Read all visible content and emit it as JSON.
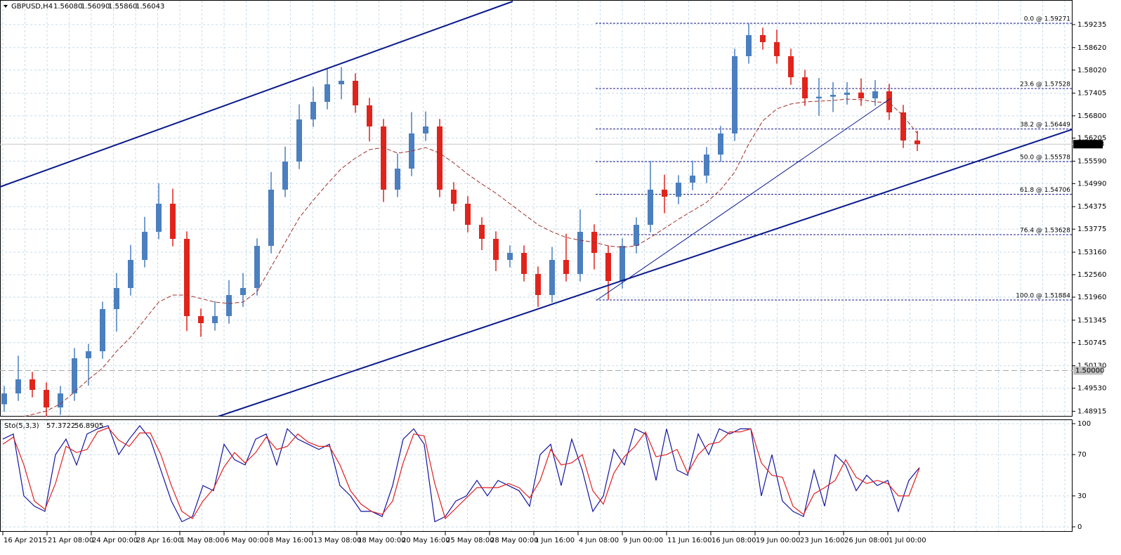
{
  "chart_data": [
    {
      "type": "candlestick",
      "title": "GBPUSD,H4",
      "info": [
        "1.56080",
        "1.56090",
        "1.55860",
        "1.56043"
      ],
      "bull_color": "#4b7fbf",
      "bear_color": "#e0241c",
      "grid": true,
      "ylim": [
        1.48772,
        1.59891
      ],
      "yticks": [
        {
          "value": 1.59235,
          "label": "1.59235"
        },
        {
          "value": 1.5862,
          "label": "1.58620"
        },
        {
          "value": 1.5802,
          "label": "1.58020"
        },
        {
          "value": 1.57405,
          "label": "1.57405"
        },
        {
          "value": 1.568,
          "label": "1.56800"
        },
        {
          "value": 1.56205,
          "label": "1.56205"
        },
        {
          "value": 1.5559,
          "label": "1.55590"
        },
        {
          "value": 1.5499,
          "label": "1.54990"
        },
        {
          "value": 1.54375,
          "label": "1.54375"
        },
        {
          "value": 1.53775,
          "label": "1.53775"
        },
        {
          "value": 1.5316,
          "label": "1.53160"
        },
        {
          "value": 1.5256,
          "label": "1.52560"
        },
        {
          "value": 1.5196,
          "label": "1.51960"
        },
        {
          "value": 1.51345,
          "label": "1.51345"
        },
        {
          "value": 1.50745,
          "label": "1.50745"
        },
        {
          "value": 1.5013,
          "label": "1.50130"
        },
        {
          "value": 1.4953,
          "label": "1.49530"
        },
        {
          "value": 1.48915,
          "label": "1.48915"
        }
      ],
      "x_labels": [
        "16 Apr 2015",
        "21 Apr 08:00",
        "24 Apr 00:00",
        "28 Apr 16:00",
        "1 May 08:00",
        "6 May 00:00",
        "8 May 16:00",
        "13 May 08:00",
        "18 May 00:00",
        "20 May 16:00",
        "25 May 08:00",
        "28 May 00:00",
        "1 Jun 16:00",
        "4 Jun 08:00",
        "9 Jun 00:00",
        "11 Jun 16:00",
        "16 Jun 08:00",
        "19 Jun 00:00",
        "23 Jun 16:00",
        "26 Jun 08:00",
        "1 Jul 00:00"
      ],
      "open": [
        1.491,
        1.49391,
        1.49766,
        1.49485,
        1.49016,
        1.49391,
        1.50329,
        1.50516,
        1.51641,
        1.52204,
        1.52954,
        1.53704,
        1.54454,
        1.53516,
        1.51454,
        1.51266,
        1.51454,
        1.52016,
        1.52204,
        1.53329,
        1.54829,
        1.55579,
        1.56704,
        1.57172,
        1.57641,
        1.57735,
        1.57079,
        1.56516,
        1.54829,
        1.55391,
        1.56329,
        1.56516,
        1.54829,
        1.54454,
        1.53891,
        1.53516,
        1.52954,
        1.53141,
        1.52579,
        1.52016,
        1.52954,
        1.52579,
        1.53704,
        1.53141,
        1.52391,
        1.53329,
        1.53891,
        1.54829,
        1.54641,
        1.55016,
        1.55204,
        1.55766,
        1.56329,
        1.58391,
        1.58954,
        1.58766,
        1.58391,
        1.57829,
        1.57266,
        1.5731,
        1.5736,
        1.5742,
        1.57266,
        1.57454,
        1.56891,
        1.56141
      ],
      "high": [
        1.49591,
        1.504,
        1.49966,
        1.49685,
        1.49591,
        1.506,
        1.50716,
        1.51841,
        1.52604,
        1.53354,
        1.54104,
        1.55,
        1.54854,
        1.53716,
        1.51654,
        1.51854,
        1.52416,
        1.52604,
        1.53529,
        1.553,
        1.55979,
        1.57104,
        1.57572,
        1.58041,
        1.581,
        1.57935,
        1.57279,
        1.56716,
        1.55791,
        1.569,
        1.56916,
        1.56716,
        1.55029,
        1.54654,
        1.54091,
        1.53716,
        1.53341,
        1.53341,
        1.52779,
        1.533,
        1.53654,
        1.543,
        1.53904,
        1.53341,
        1.53529,
        1.54091,
        1.556,
        1.55229,
        1.55216,
        1.55604,
        1.55966,
        1.56529,
        1.58591,
        1.59271,
        1.59154,
        1.591,
        1.58591,
        1.58029,
        1.5781,
        1.577,
        1.577,
        1.578,
        1.57754,
        1.57654,
        1.57091,
        1.564
      ],
      "low": [
        1.489,
        1.49191,
        1.49285,
        1.487,
        1.48816,
        1.49191,
        1.496,
        1.50316,
        1.51041,
        1.52004,
        1.52754,
        1.53504,
        1.53316,
        1.51054,
        1.509,
        1.51066,
        1.51254,
        1.517,
        1.52004,
        1.53129,
        1.54629,
        1.55379,
        1.56504,
        1.56972,
        1.57241,
        1.56879,
        1.56116,
        1.545,
        1.54629,
        1.55191,
        1.56129,
        1.54629,
        1.54254,
        1.53691,
        1.53216,
        1.52654,
        1.52754,
        1.52379,
        1.517,
        1.51816,
        1.52379,
        1.52379,
        1.527,
        1.51884,
        1.52191,
        1.53129,
        1.53691,
        1.542,
        1.54441,
        1.54816,
        1.55004,
        1.55566,
        1.56129,
        1.58191,
        1.58566,
        1.58191,
        1.57629,
        1.57066,
        1.568,
        1.569,
        1.571,
        1.57066,
        1.57066,
        1.56691,
        1.55941,
        1.5586
      ],
      "close": [
        1.49391,
        1.49766,
        1.49485,
        1.49016,
        1.49391,
        1.50329,
        1.50516,
        1.51641,
        1.52204,
        1.52954,
        1.53704,
        1.54454,
        1.53516,
        1.51454,
        1.51266,
        1.51454,
        1.52016,
        1.52204,
        1.53329,
        1.54829,
        1.55579,
        1.56704,
        1.57172,
        1.57641,
        1.57735,
        1.57079,
        1.56516,
        1.54829,
        1.55391,
        1.56329,
        1.56516,
        1.54829,
        1.54454,
        1.53891,
        1.53516,
        1.52954,
        1.53141,
        1.52579,
        1.52016,
        1.52954,
        1.52579,
        1.53704,
        1.53141,
        1.52391,
        1.53329,
        1.53891,
        1.54829,
        1.54641,
        1.55016,
        1.55204,
        1.55766,
        1.56329,
        1.58391,
        1.58954,
        1.58766,
        1.58391,
        1.57829,
        1.57266,
        1.5731,
        1.5736,
        1.5742,
        1.57266,
        1.57454,
        1.56891,
        1.56141,
        1.56043
      ],
      "ma": {
        "color": "#a0302a",
        "values": [
          null,
          1.48735,
          1.48829,
          1.48922,
          1.4911,
          1.49429,
          1.49766,
          1.50066,
          1.50516,
          1.50891,
          1.5136,
          1.51829,
          1.52016,
          1.52016,
          1.51922,
          1.51829,
          1.51791,
          1.51829,
          1.5211,
          1.52766,
          1.53422,
          1.54079,
          1.54547,
          1.54979,
          1.55391,
          1.55672,
          1.55897,
          1.55954,
          1.55804,
          1.5586,
          1.55954,
          1.55804,
          1.55541,
          1.55241,
          1.54979,
          1.54735,
          1.54454,
          1.54172,
          1.53891,
          1.53704,
          1.53554,
          1.53479,
          1.53422,
          1.53329,
          1.53291,
          1.53329,
          1.53554,
          1.53797,
          1.54041,
          1.54266,
          1.54491,
          1.54829,
          1.55297,
          1.56047,
          1.56666,
          1.56985,
          1.57116,
          1.57172,
          1.57191,
          1.5721,
          1.57247,
          1.57229,
          1.57172,
          1.57154,
          1.56797,
          1.56329
        ]
      },
      "fib_color": "#1a1a8c",
      "fib_levels": [
        {
          "value": 1.59271,
          "label": "0.0 @ 1.59271"
        },
        {
          "value": 1.57528,
          "label": "23.6 @ 1.57528"
        },
        {
          "value": 1.56449,
          "label": "38.2 @ 1.56449"
        },
        {
          "value": 1.55578,
          "label": "50.0 @ 1.55578"
        },
        {
          "value": 1.54706,
          "label": "61.8 @ 1.54706"
        },
        {
          "value": 1.53628,
          "label": "76.4 @ 1.53628"
        },
        {
          "value": 1.51884,
          "label": "100.0 @ 1.51884"
        }
      ],
      "hline": {
        "value": 1.5,
        "label": "1.50000"
      },
      "last_price": 1.56043
    },
    {
      "type": "line",
      "title": "Sto(5,3,3)",
      "readout": [
        "57.3722",
        "56.8905"
      ],
      "ylim": [
        -4.8,
        104.1
      ],
      "yticks": [
        0,
        30,
        70,
        100
      ],
      "grid": true,
      "series": [
        {
          "color": "#1414a0",
          "values": [
            85,
            90,
            30,
            20,
            15,
            70,
            85,
            60,
            90,
            95,
            98,
            70,
            85,
            98,
            85,
            55,
            25,
            5,
            10,
            40,
            35,
            80,
            65,
            60,
            85,
            90,
            60,
            95,
            85,
            80,
            75,
            80,
            40,
            30,
            15,
            15,
            10,
            40,
            85,
            95,
            80,
            5,
            10,
            25,
            30,
            45,
            30,
            45,
            40,
            35,
            20,
            70,
            80,
            40,
            85,
            55,
            15,
            30,
            75,
            60,
            95,
            90,
            45,
            95,
            55,
            50,
            90,
            70,
            95,
            90,
            95,
            95,
            30,
            70,
            25,
            15,
            10,
            55,
            20,
            70,
            60,
            35,
            50,
            40,
            45,
            15,
            45,
            57.3722
          ]
        },
        {
          "color": "#e02020",
          "values": [
            80,
            87,
            60,
            25,
            17,
            42,
            78,
            72,
            75,
            92,
            96,
            84,
            78,
            91,
            91,
            70,
            40,
            15,
            8,
            25,
            37,
            58,
            72,
            62,
            72,
            87,
            75,
            78,
            90,
            82,
            78,
            78,
            60,
            35,
            22,
            15,
            12,
            25,
            62,
            90,
            88,
            42,
            8,
            18,
            28,
            38,
            38,
            38,
            42,
            38,
            28,
            45,
            75,
            60,
            62,
            70,
            35,
            22,
            52,
            68,
            78,
            92,
            68,
            70,
            75,
            52,
            70,
            80,
            82,
            92,
            92,
            95,
            62,
            50,
            48,
            20,
            12,
            32,
            38,
            45,
            65,
            48,
            42,
            45,
            42,
            30,
            30,
            56.8905
          ]
        }
      ]
    }
  ]
}
